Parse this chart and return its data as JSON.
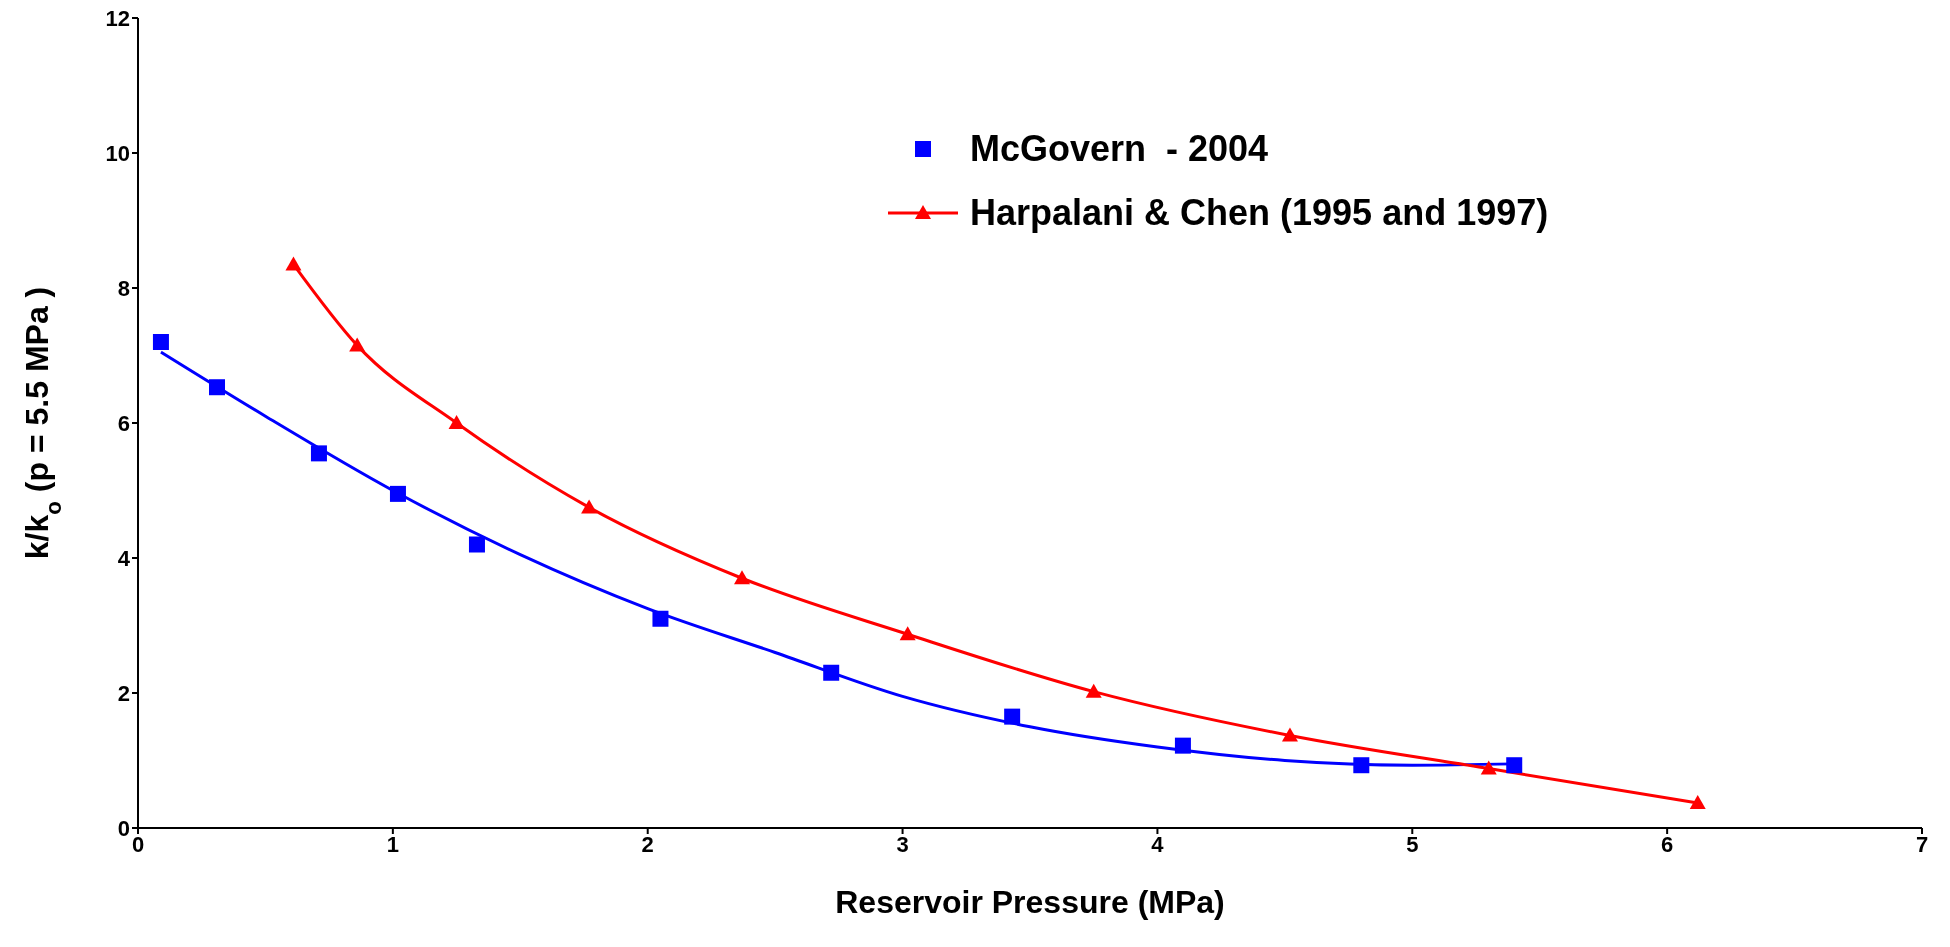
{
  "chart_data": {
    "type": "line",
    "xlabel": "Reservoir Pressure (MPa)",
    "ylabel": "k/k$_{o}$ (p = 5.5 MPa )",
    "xlim": [
      0,
      7
    ],
    "xticks": [
      0,
      1,
      2,
      3,
      4,
      5,
      6,
      7
    ],
    "ylim": [
      0,
      12
    ],
    "yticks": [
      0,
      2,
      4,
      6,
      8,
      10,
      12
    ],
    "grid": false,
    "legend": "top right",
    "series": [
      {
        "name": "McGovern  - 2004",
        "type": "scatter",
        "color": "#0000ff",
        "marker": "square",
        "x": [
          0.09,
          0.31,
          0.71,
          1.02,
          1.33,
          2.05,
          2.72,
          3.43,
          4.1,
          4.8,
          5.4
        ],
        "values": [
          7.2,
          6.53,
          5.55,
          4.95,
          4.2,
          3.1,
          2.3,
          1.65,
          1.22,
          0.93,
          0.93
        ]
      },
      {
        "type": "line",
        "color": "#0000ff",
        "marker": "none",
        "x": [
          0.09,
          0.5,
          1.0,
          1.5,
          2.0,
          2.5,
          3.0,
          3.5,
          4.0,
          4.5,
          5.0,
          5.4
        ],
        "values": [
          7.05,
          6.1,
          5.0,
          4.05,
          3.25,
          2.6,
          1.95,
          1.5,
          1.2,
          1.0,
          0.93,
          0.95
        ]
      },
      {
        "name": "Harpalani & Chen (1995 and 1997)",
        "type": "line",
        "color": "#ff0000",
        "marker": "triangle",
        "x": [
          0.61,
          0.86,
          1.25,
          1.77,
          2.37,
          3.02,
          3.75,
          4.52,
          5.3,
          6.12
        ],
        "values": [
          8.35,
          7.15,
          6.0,
          4.75,
          3.7,
          2.87,
          2.02,
          1.37,
          0.88,
          0.37
        ]
      }
    ]
  }
}
